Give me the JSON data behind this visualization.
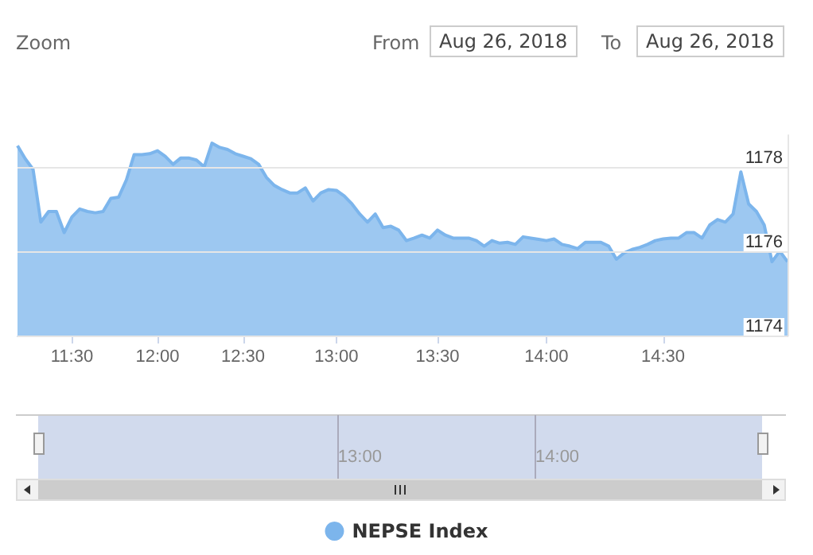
{
  "chart_data": {
    "type": "area",
    "annotations": [
      "Zoom",
      "From",
      "Aug 26, 2018",
      "To",
      "Aug 26, 2018"
    ],
    "categories": [
      null,
      null,
      null,
      null,
      null,
      null,
      null,
      "11:30",
      null,
      null,
      null,
      null,
      null,
      null,
      null,
      null,
      null,
      null,
      "12:00",
      null,
      null,
      null,
      null,
      null,
      null,
      null,
      null,
      null,
      null,
      "12:30",
      null,
      null,
      null,
      null,
      null,
      null,
      null,
      null,
      null,
      null,
      null,
      "13:00",
      null,
      null,
      null,
      null,
      null,
      null,
      null,
      null,
      null,
      null,
      null,
      null,
      "13:30",
      null,
      null,
      null,
      null,
      null,
      null,
      null,
      null,
      null,
      null,
      null,
      null,
      null,
      "14:00",
      null,
      null,
      null,
      null,
      null,
      null,
      null,
      null,
      null,
      null,
      null,
      null,
      null,
      null,
      "14:30",
      null,
      null,
      null,
      null,
      null,
      null,
      null,
      null,
      null,
      null,
      null,
      null,
      null,
      null,
      null,
      null
    ],
    "series": [
      {
        "name": "NEPSE Index",
        "color": "#7cb5ec",
        "values": [
          1178.5,
          1178.19,
          1177.94,
          1176.69,
          1176.94,
          1176.94,
          1176.44,
          1176.81,
          1177.0,
          1176.94,
          1176.91,
          1176.94,
          1177.25,
          1177.28,
          1177.69,
          1178.29,
          1178.29,
          1178.31,
          1178.38,
          1178.25,
          1178.06,
          1178.21,
          1178.21,
          1178.16,
          1178.0,
          1178.56,
          1178.46,
          1178.41,
          1178.31,
          1178.25,
          1178.19,
          1178.06,
          1177.75,
          1177.56,
          1177.46,
          1177.38,
          1177.38,
          1177.5,
          1177.19,
          1177.38,
          1177.46,
          1177.44,
          1177.31,
          1177.12,
          1176.88,
          1176.69,
          1176.88,
          1176.56,
          1176.59,
          1176.5,
          1176.25,
          1176.31,
          1176.38,
          1176.31,
          1176.5,
          1176.38,
          1176.31,
          1176.31,
          1176.31,
          1176.25,
          1176.12,
          1176.25,
          1176.19,
          1176.21,
          1176.16,
          1176.34,
          1176.31,
          1176.28,
          1176.25,
          1176.29,
          1176.16,
          1176.12,
          1176.06,
          1176.21,
          1176.21,
          1176.21,
          1176.12,
          1175.81,
          1175.96,
          1176.04,
          1176.09,
          1176.16,
          1176.25,
          1176.29,
          1176.31,
          1176.31,
          1176.44,
          1176.44,
          1176.31,
          1176.62,
          1176.75,
          1176.69,
          1176.88,
          1177.88,
          1177.12,
          1176.94,
          1176.62,
          1175.75,
          1176.0,
          1175.75
        ]
      }
    ],
    "ylim": [
      1174,
      1178.75
    ],
    "yticks": [
      1174,
      1176,
      1178
    ],
    "grid": "y",
    "legend": "bottom",
    "marker": "none",
    "line_style": "solid"
  }
}
